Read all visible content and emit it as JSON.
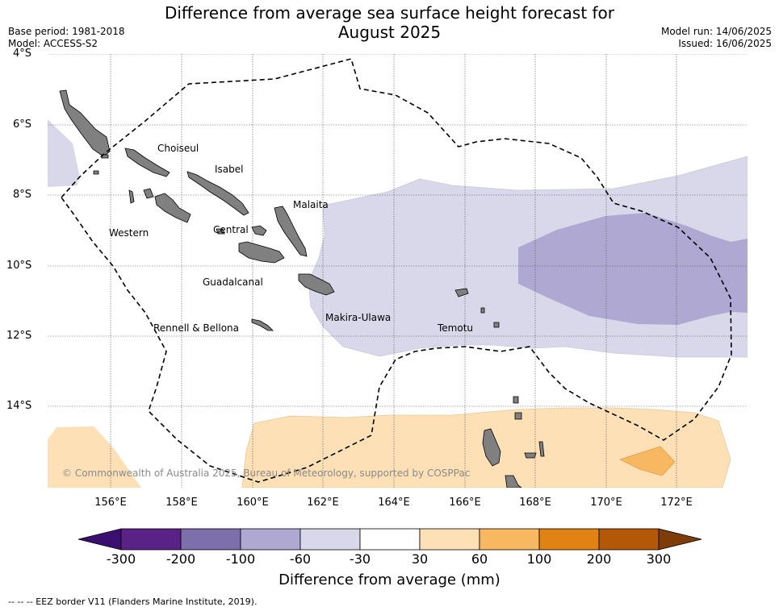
{
  "title_line1": "Difference from average sea surface height forecast for",
  "title_line2": "August 2025",
  "meta": {
    "base_period": "Base period: 1981-2018",
    "model": "Model: ACCESS-S2",
    "model_run": "Model run: 14/06/2025",
    "issued": "Issued: 16/06/2025"
  },
  "lat_labels": [
    "4°S",
    "6°S",
    "8°S",
    "10°S",
    "12°S",
    "14°S"
  ],
  "lon_labels": [
    "156°E",
    "158°E",
    "160°E",
    "162°E",
    "164°E",
    "166°E",
    "168°E",
    "170°E",
    "172°E"
  ],
  "regions": [
    "Choiseul",
    "Isabel",
    "Malaita",
    "Western",
    "Central",
    "Guadalcanal",
    "Makira-Ulawa",
    "Rennell & Bellona",
    "Temotu"
  ],
  "copyright": "© Commonwealth of Australia 2025, Bureau of Meteorology, supported by COSPPac",
  "colorbar": {
    "ticks": [
      "-300",
      "-200",
      "-100",
      "-60",
      "-30",
      "30",
      "60",
      "100",
      "200",
      "300"
    ],
    "colors": [
      "#3b0f6f",
      "#5a2186",
      "#7d6fab",
      "#aea8d2",
      "#d8d8ea",
      "#ffffff",
      "#fde0b6",
      "#f8b862",
      "#e08313",
      "#b35806",
      "#7f3b08"
    ],
    "label": "Difference from average (mm)"
  },
  "footer": "--  --  -- EEZ border V11 (Flanders Marine Institute, 2019)."
}
